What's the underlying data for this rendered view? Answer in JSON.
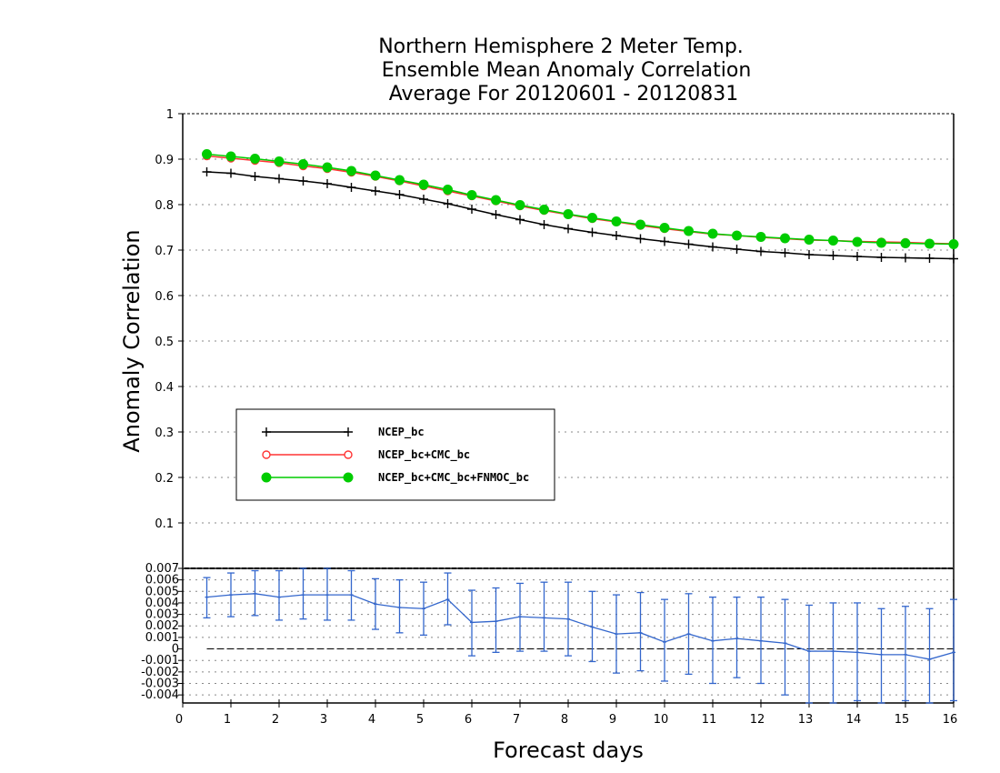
{
  "chart_data": [
    {
      "type": "line",
      "title": [
        "Northern Hemisphere 2 Meter Temp.",
        "Ensemble Mean Anomaly Correlation",
        "Average For 20120601 - 20120831"
      ],
      "ylabel": "Anomaly Correlation",
      "xlabel": "Forecast days",
      "xlim": [
        0,
        16
      ],
      "ylim": [
        0,
        1
      ],
      "yticks": [
        "0.1",
        "0.2",
        "0.3",
        "0.4",
        "0.5",
        "0.6",
        "0.7",
        "0.8",
        "0.9",
        "1"
      ],
      "grid": true,
      "legend_placement": "lower-left",
      "x": [
        0.5,
        1,
        1.5,
        2,
        2.5,
        3,
        3.5,
        4,
        4.5,
        5,
        5.5,
        6,
        6.5,
        7,
        7.5,
        8,
        8.5,
        9,
        9.5,
        10,
        10.5,
        11,
        11.5,
        12,
        12.5,
        13,
        13.5,
        14,
        14.5,
        15,
        15.5,
        16
      ],
      "series": [
        {
          "name": "NCEP_bc",
          "color": "#000000",
          "marker": "plus",
          "values": [
            0.872,
            0.869,
            0.862,
            0.857,
            0.852,
            0.846,
            0.838,
            0.83,
            0.822,
            0.812,
            0.802,
            0.79,
            0.778,
            0.767,
            0.756,
            0.747,
            0.739,
            0.732,
            0.725,
            0.719,
            0.713,
            0.707,
            0.702,
            0.697,
            0.694,
            0.69,
            0.688,
            0.686,
            0.684,
            0.683,
            0.682,
            0.681
          ]
        },
        {
          "name": "NCEP_bc+CMC_bc",
          "color": "#ff3333",
          "marker": "open-circle",
          "values": [
            0.907,
            0.902,
            0.897,
            0.892,
            0.885,
            0.879,
            0.871,
            0.862,
            0.852,
            0.841,
            0.83,
            0.819,
            0.808,
            0.797,
            0.787,
            0.778,
            0.769,
            0.762,
            0.754,
            0.747,
            0.741,
            0.735,
            0.732,
            0.728,
            0.725,
            0.722,
            0.721,
            0.719,
            0.718,
            0.717,
            0.715,
            0.714
          ]
        },
        {
          "name": "NCEP_bc+CMC_bc+FNMOC_bc",
          "color": "#00cc00",
          "marker": "filled-circle",
          "values": [
            0.911,
            0.906,
            0.901,
            0.895,
            0.889,
            0.882,
            0.874,
            0.864,
            0.854,
            0.844,
            0.833,
            0.821,
            0.81,
            0.799,
            0.789,
            0.779,
            0.771,
            0.763,
            0.756,
            0.749,
            0.742,
            0.736,
            0.732,
            0.729,
            0.726,
            0.723,
            0.721,
            0.718,
            0.716,
            0.715,
            0.714,
            0.713
          ]
        }
      ]
    },
    {
      "type": "line",
      "xlim": [
        0,
        16
      ],
      "ylim": [
        -0.0047,
        0.007
      ],
      "yticks": [
        "-0.004",
        "-0.003",
        "-0.002",
        "-0.001",
        "0",
        "0.001",
        "0.002",
        "0.003",
        "0.004",
        "0.005",
        "0.006",
        "0.007"
      ],
      "xticks": [
        "0",
        "1",
        "2",
        "3",
        "4",
        "5",
        "6",
        "7",
        "8",
        "9",
        "10",
        "11",
        "12",
        "13",
        "14",
        "15",
        "16"
      ],
      "grid": true,
      "x": [
        0.5,
        1,
        1.5,
        2,
        2.5,
        3,
        3.5,
        4,
        4.5,
        5,
        5.5,
        6,
        6.5,
        7,
        7.5,
        8,
        8.5,
        9,
        9.5,
        10,
        10.5,
        11,
        11.5,
        12,
        12.5,
        13,
        13.5,
        14,
        14.5,
        15,
        15.5,
        16
      ],
      "series": [
        {
          "color": "#3366cc",
          "values": [
            0.0045,
            0.0047,
            0.0048,
            0.0045,
            0.0047,
            0.0047,
            0.0047,
            0.0039,
            0.0036,
            0.0035,
            0.0043,
            0.0023,
            0.0024,
            0.0028,
            0.0027,
            0.0026,
            0.0019,
            0.0013,
            0.0014,
            0.0006,
            0.0013,
            0.0007,
            0.0009,
            0.0007,
            0.0005,
            -0.0002,
            -0.0002,
            -0.0003,
            -0.0005,
            -0.0005,
            -0.0009,
            -0.0003
          ],
          "error_low": [
            0.0027,
            0.0028,
            0.0029,
            0.0025,
            0.0026,
            0.0025,
            0.0025,
            0.0017,
            0.0014,
            0.0012,
            0.0021,
            -0.0006,
            -0.0003,
            -0.0002,
            -0.0002,
            -0.0006,
            -0.0011,
            -0.0021,
            -0.0019,
            -0.0028,
            -0.0022,
            -0.003,
            -0.0025,
            -0.003,
            -0.004,
            -0.0047,
            -0.0047,
            -0.0045,
            -0.0047,
            -0.0045,
            -0.0047,
            -0.0045
          ],
          "error_high": [
            0.0062,
            0.0066,
            0.0068,
            0.0068,
            0.007,
            0.007,
            0.0068,
            0.0061,
            0.006,
            0.0058,
            0.0066,
            0.0051,
            0.0053,
            0.0057,
            0.0058,
            0.0058,
            0.005,
            0.0047,
            0.0049,
            0.0043,
            0.0048,
            0.0045,
            0.0045,
            0.0045,
            0.0043,
            0.0038,
            0.004,
            0.004,
            0.0035,
            0.0037,
            0.0035,
            0.0043
          ]
        }
      ]
    }
  ]
}
